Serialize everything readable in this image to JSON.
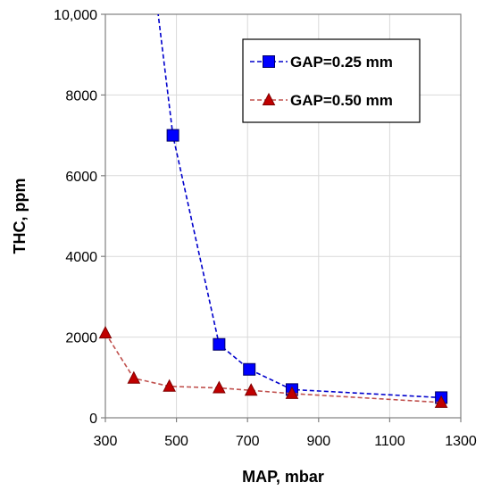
{
  "chart_data": {
    "type": "line",
    "xlabel": "MAP,  mbar",
    "ylabel": "THC,  ppm",
    "xlim": [
      300,
      1300
    ],
    "ylim": [
      0,
      10000
    ],
    "x_ticks": [
      300,
      500,
      700,
      900,
      1100,
      1300
    ],
    "y_ticks": [
      0,
      2000,
      4000,
      6000,
      8000,
      10000
    ],
    "x_tick_labels": [
      "300",
      "500",
      "700",
      "900",
      "1100",
      "1300"
    ],
    "y_tick_labels": [
      "0",
      "2000",
      "4000",
      "6000",
      "8000",
      "10,000"
    ],
    "grid": true,
    "legend_position": "top-right",
    "series": [
      {
        "name": "GAP=0.25 mm",
        "marker": "square",
        "line_style": "dashed",
        "color": "#0000cc",
        "marker_fill": "#0000ff",
        "x": [
          490,
          620,
          705,
          825,
          1245
        ],
        "y": [
          7000,
          1820,
          1200,
          700,
          500
        ],
        "extends_above_top": true
      },
      {
        "name": "GAP=0.50 mm",
        "marker": "triangle",
        "line_style": "dashed",
        "color": "#c0504d",
        "marker_fill": "#c00000",
        "x": [
          300,
          380,
          480,
          620,
          710,
          825,
          1245
        ],
        "y": [
          2100,
          980,
          780,
          740,
          680,
          600,
          380
        ]
      }
    ]
  }
}
